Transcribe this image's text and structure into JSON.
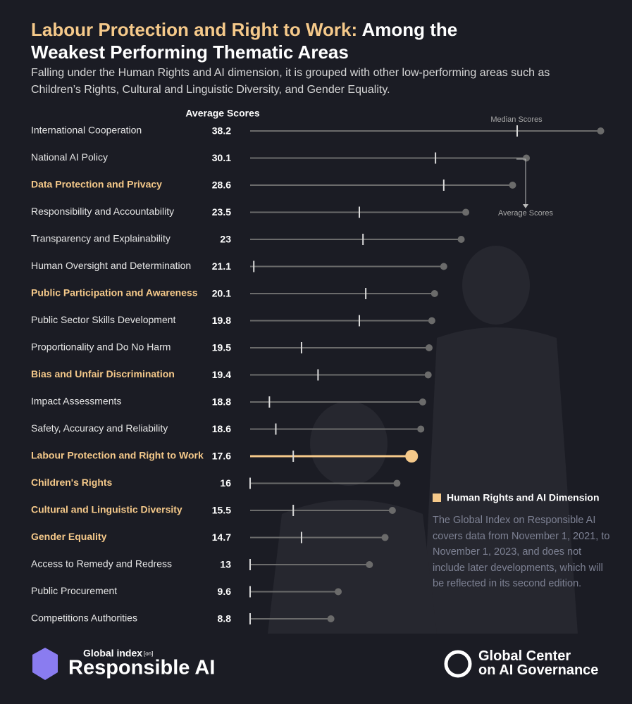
{
  "chart_data": {
    "type": "dotplot",
    "title_highlight": "Labour Protection and Right to Work:",
    "title": "Among the Weakest Performing Thematic Areas",
    "subtitle": "Falling under the Human Rights and AI dimension, it is grouped with other low-performing areas such as Children’s Rights, Cultural and Linguistic Diversity, and Gender Equality.",
    "column_header": "Average Scores",
    "categories": [
      "International Cooperation",
      "National AI Policy",
      "Data Protection and Privacy",
      "Responsibility and Accountability",
      "Transparency and Explainability",
      "Human Oversight and Determination",
      "Public Participation and Awareness",
      "Public Sector Skills Development",
      "Proportionality and Do No Harm",
      "Bias and Unfair Discrimination",
      "Impact Assessments",
      "Safety, Accuracy and Reliability",
      "Labour Protection and Right to Work",
      "Children's Rights",
      "Cultural and Linguistic Diversity",
      "Gender Equality",
      "Access to Remedy and Redress",
      "Public Procurement",
      "Competitions Authorities"
    ],
    "highlight": [
      false,
      false,
      true,
      false,
      false,
      false,
      true,
      false,
      false,
      true,
      false,
      false,
      true,
      true,
      true,
      true,
      false,
      false,
      false
    ],
    "featured": 12,
    "series": [
      {
        "name": "Average Scores",
        "color": "#6b6b6b",
        "values": [
          38.2,
          30.1,
          28.6,
          23.5,
          23.0,
          21.1,
          20.1,
          19.8,
          19.5,
          19.4,
          18.8,
          18.6,
          17.6,
          16.0,
          15.5,
          14.7,
          13.0,
          9.6,
          8.8
        ]
      },
      {
        "name": "Median Scores",
        "color": "#d9d9d9",
        "values": [
          29.1,
          20.2,
          21.1,
          11.9,
          12.3,
          0.4,
          12.6,
          11.9,
          5.6,
          7.4,
          2.1,
          2.8,
          4.7,
          0,
          4.7,
          5.6,
          0,
          0,
          0
        ]
      }
    ],
    "highlight_color": "#f5c98a",
    "xlim": [
      0,
      40
    ],
    "legend": {
      "label": "Human Rights and AI Dimension",
      "color": "#f5c98a"
    },
    "note": "The Global Index on Responsible AI covers data from November 1, 2021, to November 1, 2023, and does not include later developments, which will be reflected in its second edition.",
    "footer": {
      "left_small": "Global index",
      "left_tag": "[on]",
      "left_large": "Responsible AI",
      "right": "Global Center on AI Governance"
    }
  }
}
